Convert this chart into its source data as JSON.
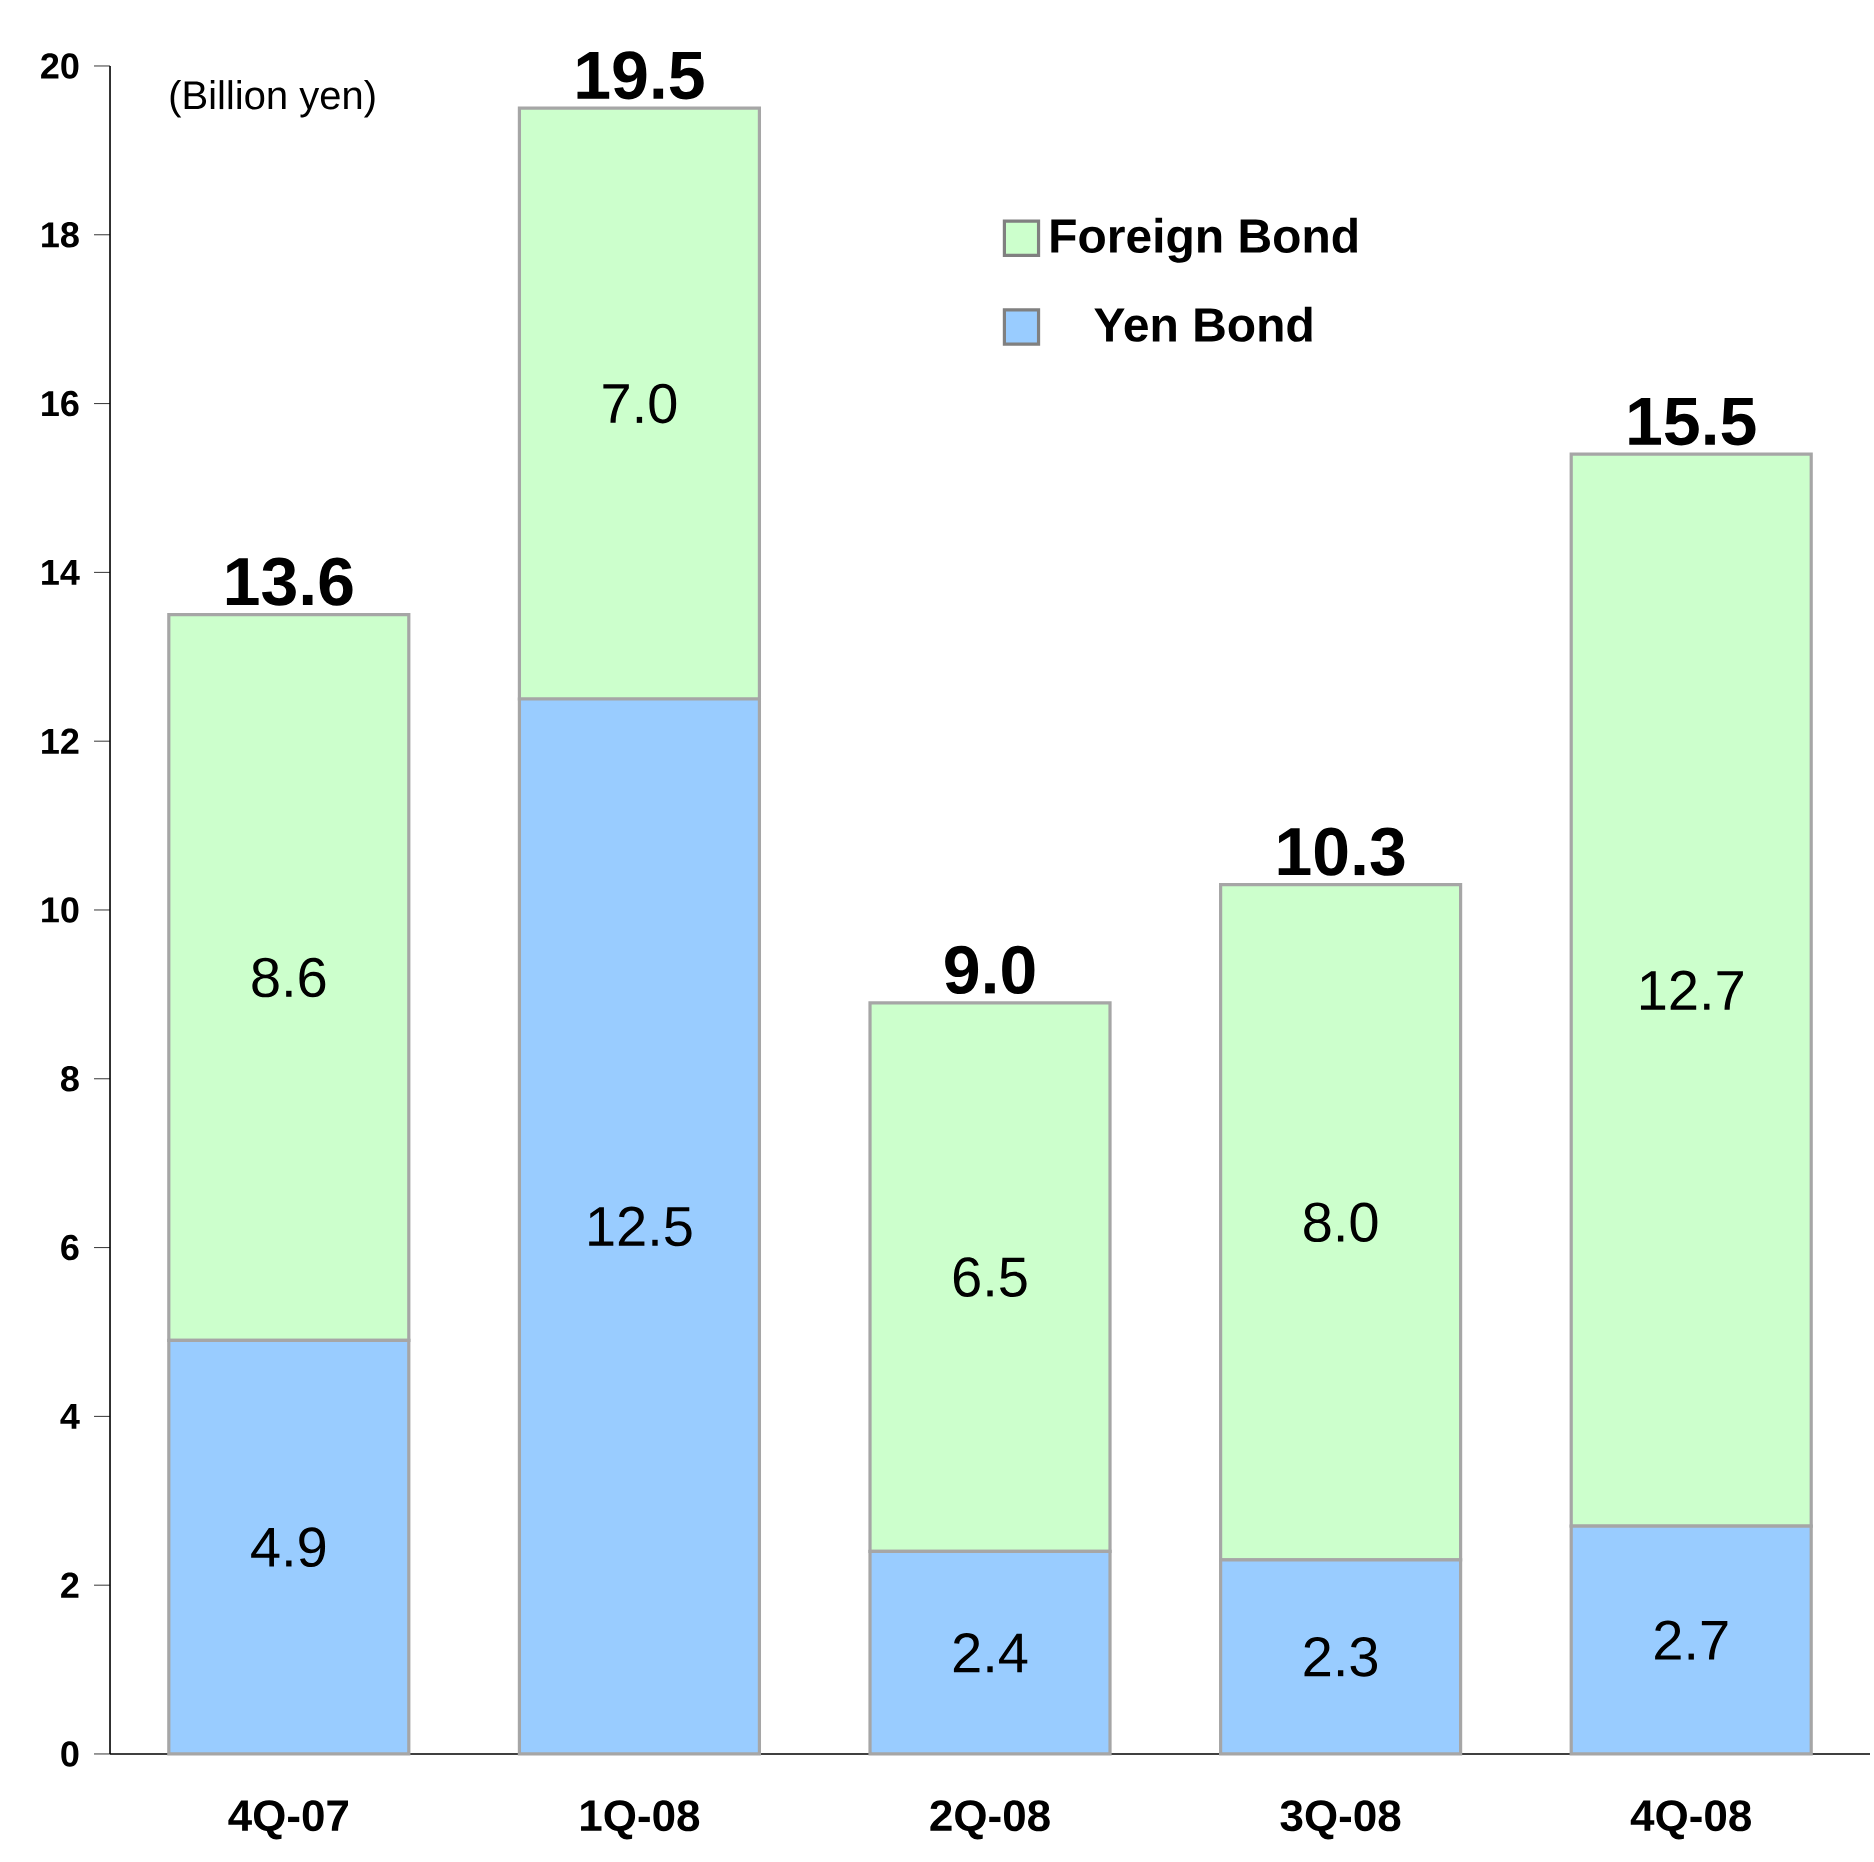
{
  "chart_data": {
    "type": "bar",
    "stacked": true,
    "ylabel": "(Billion yen)",
    "categories": [
      "4Q-07",
      "1Q-08",
      "2Q-08",
      "3Q-08",
      "4Q-08"
    ],
    "series": [
      {
        "name": "Yen Bond",
        "color": "#99ccff",
        "values": [
          4.9,
          12.5,
          2.4,
          2.3,
          2.7
        ],
        "value_labels": [
          "4.9",
          "12.5",
          "2.4",
          "2.3",
          "2.7"
        ]
      },
      {
        "name": "Foreign Bond",
        "color": "#ccffcc",
        "values": [
          8.6,
          7.0,
          6.5,
          8.0,
          12.7
        ],
        "value_labels": [
          "8.6",
          "7.0",
          "6.5",
          "8.0",
          "12.7"
        ]
      }
    ],
    "totals": [
      "13.6",
      "19.5",
      "9.0",
      "10.3",
      "15.5"
    ],
    "ylim": [
      0,
      20
    ],
    "yticks": [
      0,
      2,
      4,
      6,
      8,
      10,
      12,
      14,
      16,
      18,
      20
    ],
    "grid": false,
    "legend": "top right"
  }
}
